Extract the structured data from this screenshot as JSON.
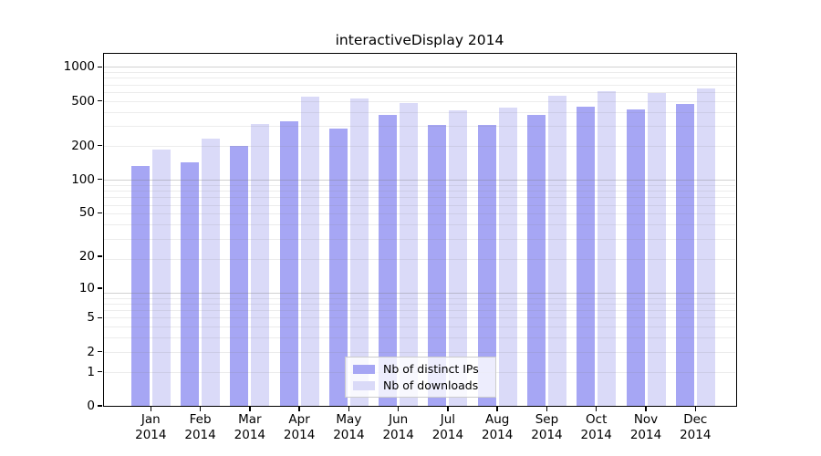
{
  "title": "interactiveDisplay 2014",
  "legend": {
    "items": [
      {
        "label": "Nb of distinct IPs"
      },
      {
        "label": "Nb of downloads"
      }
    ]
  },
  "axes": {
    "y_tick_labels": [
      "1000",
      "500",
      "200",
      "100",
      "50",
      "20",
      "10",
      "5",
      "2",
      "1",
      "0"
    ],
    "x_tick_month_labels": [
      "Jan",
      "Feb",
      "Mar",
      "Apr",
      "May",
      "Jun",
      "Jul",
      "Aug",
      "Sep",
      "Oct",
      "Nov",
      "Dec"
    ],
    "x_tick_year_label": "2014"
  },
  "colors": {
    "distinct_ips_bar": "#a6a6f4",
    "downloads_bar": "#dadaf8",
    "axis": "#000000"
  },
  "chart_data": {
    "type": "bar",
    "title": "interactiveDisplay 2014",
    "categories": [
      "Jan 2014",
      "Feb 2014",
      "Mar 2014",
      "Apr 2014",
      "May 2014",
      "Jun 2014",
      "Jul 2014",
      "Aug 2014",
      "Sep 2014",
      "Oct 2014",
      "Nov 2014",
      "Dec 2014"
    ],
    "series": [
      {
        "name": "Nb of distinct IPs",
        "color": "#a6a6f4",
        "values": [
          130,
          140,
          196,
          329,
          282,
          372,
          305,
          302,
          375,
          440,
          420,
          468
        ]
      },
      {
        "name": "Nb of downloads",
        "color": "#dadaf8",
        "values": [
          182,
          228,
          310,
          540,
          525,
          477,
          409,
          432,
          548,
          606,
          580,
          636
        ]
      }
    ],
    "xlabel": "",
    "ylabel": "",
    "y_scale": "log(value+1)",
    "y_ticks": [
      1000,
      500,
      200,
      100,
      50,
      20,
      10,
      5,
      2,
      1,
      0
    ],
    "ylim": [
      0,
      1290
    ],
    "grid": true,
    "legend_position": "inside-bottom-center"
  }
}
